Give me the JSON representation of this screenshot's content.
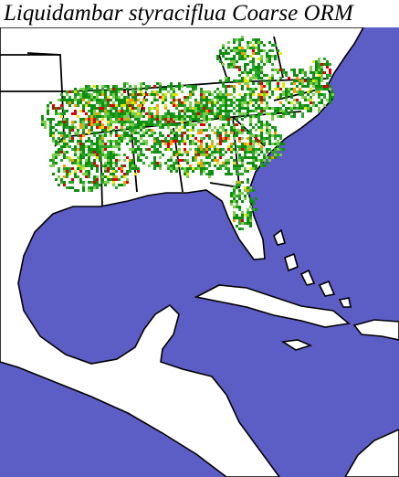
{
  "title": "Liquidambar styraciflua Coarse ORM"
}
